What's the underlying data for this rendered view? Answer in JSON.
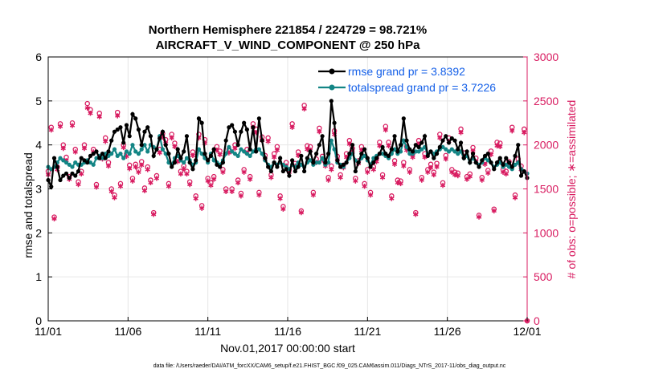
{
  "chart_data": {
    "type": "line",
    "title_line1": "Northern Hemisphere 221854 / 224729 = 98.721%",
    "title_line2": "AIRCRAFT_V_WIND_COMPONENT @ 250 hPa",
    "xlabel": "Nov.01,2017 00:00:00 start",
    "ylabel_left": "rmse and totalspread",
    "ylabel_right": "# of obs: o=possible; ∗=assimilated",
    "footnote": "data file: /Users/raeder/DAI/ATM_forcXX/CAM6_setup/f.e21.FHIST_BGC.f09_025.CAM6assim.011/Diags_NTrS_2017-11/obs_diag_output.nc",
    "xlim": [
      0,
      30
    ],
    "ylim_left": [
      0,
      6
    ],
    "ylim_right": [
      0,
      3000
    ],
    "xticks": [
      0,
      5,
      10,
      15,
      20,
      25,
      30
    ],
    "xtick_labels": [
      "11/01",
      "11/06",
      "11/11",
      "11/16",
      "11/21",
      "11/26",
      "12/01"
    ],
    "yticks_left": [
      0,
      1,
      2,
      3,
      4,
      5,
      6
    ],
    "yticks_right": [
      0,
      500,
      1000,
      1500,
      2000,
      2500,
      3000
    ],
    "grid": true,
    "colors": {
      "rmse": "#000000",
      "spread": "#138585",
      "obs": "#d81b60",
      "legend_text": "#1560e8"
    },
    "legend": [
      {
        "label": "rmse grand pr = 3.8392",
        "series": "rmse"
      },
      {
        "label": "totalspread grand pr = 3.7226",
        "series": "spread"
      }
    ],
    "rmse": [
      3.2,
      3.05,
      3.7,
      3.5,
      3.2,
      3.3,
      3.35,
      3.25,
      3.35,
      3.3,
      3.4,
      3.7,
      3.65,
      3.6,
      3.75,
      3.8,
      3.85,
      3.7,
      3.8,
      3.7,
      3.85,
      4.1,
      4.3,
      4.35,
      4.4,
      4.05,
      4.45,
      4.2,
      4.7,
      4.6,
      4.35,
      4.0,
      4.3,
      4.4,
      4.2,
      3.75,
      3.9,
      4.15,
      4.3,
      4.0,
      3.8,
      3.5,
      3.6,
      3.9,
      3.7,
      3.85,
      4.2,
      3.6,
      3.45,
      3.65,
      4.6,
      4.5,
      3.8,
      3.65,
      3.75,
      3.9,
      3.55,
      3.5,
      3.6,
      4.1,
      4.4,
      4.45,
      4.3,
      4.0,
      4.3,
      4.5,
      4.35,
      3.9,
      4.4,
      3.85,
      4.6,
      4.1,
      3.7,
      3.5,
      3.4,
      3.6,
      3.5,
      3.7,
      3.4,
      3.45,
      3.3,
      3.65,
      3.4,
      3.5,
      3.75,
      3.4,
      3.7,
      3.85,
      3.6,
      3.8,
      4.0,
      4.2,
      3.6,
      3.8,
      5.0,
      4.5,
      3.65,
      3.5,
      3.55,
      3.6,
      3.8,
      4.0,
      3.4,
      3.6,
      3.8,
      3.9,
      3.7,
      3.5,
      3.6,
      3.7,
      3.8,
      3.95,
      3.8,
      3.75,
      3.9,
      4.2,
      3.85,
      4.0,
      4.6,
      4.1,
      3.9,
      3.85,
      4.0,
      3.95,
      4.05,
      4.2,
      3.75,
      3.85,
      3.7,
      3.8,
      3.95,
      4.1,
      4.2,
      4.05,
      4.15,
      4.1,
      3.9,
      4.05,
      3.7,
      3.85,
      3.6,
      3.8,
      3.6,
      3.5,
      3.65,
      3.75,
      3.8,
      3.6,
      3.45,
      3.6,
      3.7,
      3.55,
      3.7,
      3.6,
      3.5,
      3.75,
      4.0,
      3.3,
      3.4,
      3.25
    ],
    "totalspread": [
      3.5,
      3.45,
      3.5,
      3.6,
      3.7,
      3.65,
      3.6,
      3.55,
      3.5,
      3.6,
      3.55,
      3.55,
      3.6,
      3.65,
      3.6,
      3.55,
      3.7,
      3.75,
      3.7,
      3.8,
      3.75,
      3.8,
      3.9,
      3.75,
      3.8,
      3.7,
      3.85,
      3.8,
      4.0,
      3.85,
      3.8,
      3.9,
      4.0,
      3.85,
      4.0,
      3.95,
      3.9,
      4.2,
      3.9,
      3.8,
      3.6,
      3.55,
      3.7,
      3.75,
      3.65,
      3.6,
      3.7,
      3.65,
      3.55,
      3.6,
      3.9,
      3.8,
      3.7,
      3.6,
      3.8,
      3.65,
      3.6,
      3.55,
      3.65,
      3.8,
      3.95,
      3.85,
      3.8,
      3.75,
      3.9,
      3.85,
      3.8,
      3.75,
      3.85,
      3.9,
      3.9,
      3.8,
      3.65,
      3.55,
      3.5,
      3.6,
      3.55,
      3.6,
      3.55,
      3.5,
      3.45,
      3.55,
      3.5,
      3.6,
      3.55,
      3.5,
      3.6,
      3.65,
      3.55,
      3.6,
      3.6,
      3.7,
      3.55,
      3.6,
      4.1,
      3.9,
      3.6,
      3.55,
      3.5,
      3.6,
      3.7,
      3.8,
      3.65,
      3.6,
      3.7,
      3.75,
      3.65,
      3.55,
      3.7,
      3.75,
      3.8,
      3.8,
      3.75,
      3.7,
      3.8,
      3.9,
      3.8,
      3.85,
      4.1,
      3.95,
      3.8,
      3.8,
      3.85,
      3.85,
      3.9,
      3.95,
      3.8,
      3.85,
      3.8,
      3.85,
      3.9,
      3.95,
      3.9,
      3.85,
      3.9,
      3.85,
      3.8,
      3.85,
      3.7,
      3.75,
      3.6,
      3.7,
      3.6,
      3.55,
      3.6,
      3.7,
      3.65,
      3.6,
      3.5,
      3.55,
      3.6,
      3.5,
      3.55,
      3.5,
      3.45,
      3.55,
      3.6,
      3.45,
      3.4,
      3.35
    ],
    "obs_possible": [
      1700,
      2200,
      1180,
      1750,
      2240,
      2000,
      1860,
      1640,
      2250,
      1950,
      1580,
      1700,
      2000,
      2470,
      2400,
      1950,
      1550,
      2360,
      1880,
      2080,
      1800,
      1500,
      1430,
      2370,
      1560,
      2000,
      1900,
      1770,
      1620,
      1780,
      1720,
      1810,
      1510,
      1750,
      1600,
      1230,
      1650,
      1950,
      2130,
      2060,
      1560,
      2120,
      2020,
      1850,
      1700,
      1760,
      1700,
      1580,
      1920,
      1420,
      2120,
      1310,
      2060,
      1620,
      1570,
      1640,
      1980,
      1930,
      1720,
      1500,
      1950,
      1500,
      2000,
      1600,
      1450,
      1720,
      1950,
      1640,
      2240,
      2180,
      1460,
      2090,
      1880,
      2080,
      1660,
      1900,
      1980,
      1420,
      1300,
      1800,
      1720,
      2240,
      1790,
      1920,
      1250,
      2450,
      1990,
      1980,
      1460,
      1840,
      2190,
      1870,
      1800,
      1630,
      1760,
      2160,
      1870,
      1660,
      1770,
      1900,
      2050,
      1960,
      1620,
      1820,
      1980,
      1560,
      1720,
      1460,
      1750,
      1850,
      2030,
      1660,
      2210,
      2030,
      1420,
      1820,
      1600,
      1590,
      1800,
      1980,
      1720,
      1900,
      1230,
      2050,
      1630,
      1900,
      1720,
      1780,
      1690,
      1790,
      2120,
      1570,
      1880,
      2080,
      1720,
      1690,
      1680,
      2180,
      1910,
      1640,
      1670,
      1970,
      1850,
      1200,
      1630,
      1820,
      1710,
      1930,
      1270,
      2030,
      2020,
      1720,
      1700,
      1810,
      2200,
      1430,
      1840,
      1760,
      2180,
      0
    ],
    "obs_assimilated": [
      1660,
      2170,
      1160,
      1720,
      2210,
      1960,
      1820,
      1610,
      2220,
      1920,
      1550,
      1670,
      1960,
      2420,
      2360,
      1920,
      1520,
      2320,
      1840,
      2040,
      1760,
      1470,
      1400,
      2330,
      1530,
      1970,
      1870,
      1730,
      1590,
      1750,
      1690,
      1770,
      1480,
      1720,
      1570,
      1210,
      1620,
      1910,
      2090,
      2020,
      1530,
      2080,
      1980,
      1810,
      1670,
      1730,
      1670,
      1550,
      1880,
      1390,
      2080,
      1280,
      2020,
      1590,
      1540,
      1610,
      1940,
      1890,
      1690,
      1470,
      1910,
      1470,
      1960,
      1570,
      1420,
      1690,
      1910,
      1610,
      2200,
      2140,
      1430,
      2050,
      1840,
      2040,
      1630,
      1860,
      1940,
      1390,
      1270,
      1760,
      1690,
      2200,
      1760,
      1880,
      1230,
      2410,
      1950,
      1940,
      1430,
      1800,
      2150,
      1830,
      1760,
      1600,
      1720,
      2120,
      1830,
      1630,
      1740,
      1860,
      2010,
      1920,
      1590,
      1790,
      1940,
      1530,
      1690,
      1430,
      1720,
      1810,
      1990,
      1630,
      2170,
      1990,
      1390,
      1780,
      1570,
      1560,
      1760,
      1940,
      1690,
      1860,
      1210,
      2010,
      1600,
      1860,
      1690,
      1740,
      1660,
      1750,
      2080,
      1540,
      1840,
      2040,
      1690,
      1660,
      1650,
      2140,
      1870,
      1610,
      1640,
      1930,
      1810,
      1180,
      1600,
      1780,
      1680,
      1890,
      1250,
      1990,
      1980,
      1690,
      1670,
      1770,
      2160,
      1400,
      1800,
      1720,
      2140,
      0
    ]
  }
}
